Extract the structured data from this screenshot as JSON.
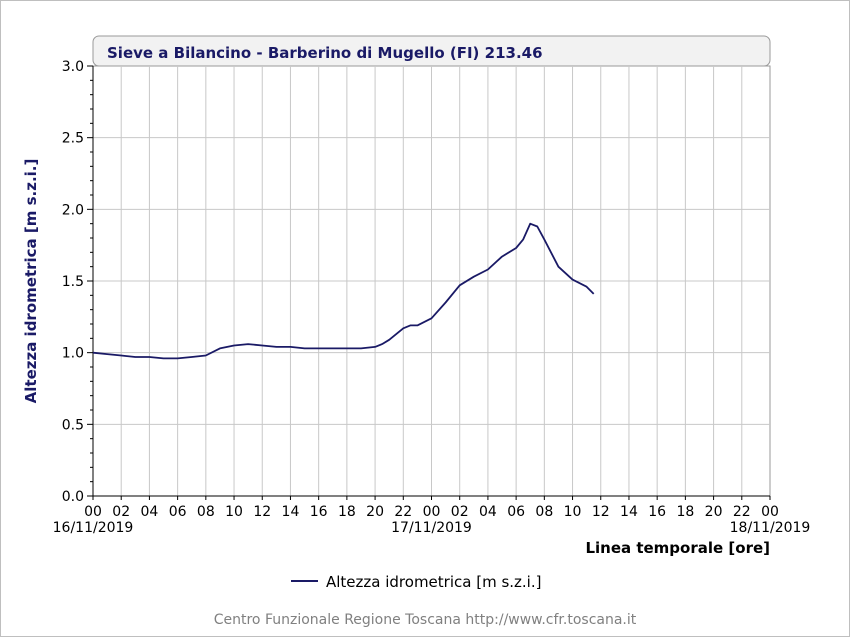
{
  "chart_data": {
    "type": "line",
    "title": "Sieve a Bilancino - Barberino di Mugello (FI) 213.46",
    "ylabel": "Altezza idrometrica [m s.z.i.]",
    "xlabel": "Linea temporale [ore]",
    "ylim": [
      0,
      3
    ],
    "yticks": [
      "0.0",
      "0.5",
      "1.0",
      "1.5",
      "2.0",
      "2.5",
      "3.0"
    ],
    "xtick_labels": [
      "00",
      "02",
      "04",
      "06",
      "08",
      "10",
      "12",
      "14",
      "16",
      "18",
      "20",
      "22",
      "00",
      "02",
      "04",
      "06",
      "08",
      "10",
      "12",
      "14",
      "16",
      "18",
      "20",
      "22",
      "00"
    ],
    "date_labels": [
      {
        "hour": 0,
        "text": "16/11/2019"
      },
      {
        "hour": 24,
        "text": "17/11/2019"
      },
      {
        "hour": 48,
        "text": "18/11/2019"
      }
    ],
    "xlim_hours": [
      0,
      48
    ],
    "grid": true,
    "legend": "bottom-center",
    "color": "#1a1a66",
    "series": [
      {
        "name": "Altezza idrometrica [m s.z.i.]",
        "x": [
          0,
          1,
          2,
          3,
          4,
          5,
          6,
          7,
          8,
          9,
          10,
          11,
          12,
          13,
          14,
          15,
          16,
          17,
          18,
          19,
          20,
          20.5,
          21,
          22,
          22.5,
          23,
          24,
          25,
          26,
          27,
          28,
          29,
          30,
          30.5,
          31,
          31.5,
          32,
          33,
          34,
          35,
          35.5
        ],
        "y": [
          1.0,
          0.99,
          0.98,
          0.97,
          0.97,
          0.96,
          0.96,
          0.97,
          0.98,
          1.03,
          1.05,
          1.06,
          1.05,
          1.04,
          1.04,
          1.03,
          1.03,
          1.03,
          1.03,
          1.03,
          1.04,
          1.06,
          1.09,
          1.17,
          1.19,
          1.19,
          1.24,
          1.35,
          1.47,
          1.53,
          1.58,
          1.67,
          1.73,
          1.79,
          1.9,
          1.88,
          1.79,
          1.6,
          1.51,
          1.46,
          1.41
        ]
      }
    ]
  },
  "legend_label": "Altezza idrometrica [m s.z.i.]",
  "footer": "Centro Funzionale Regione Toscana http://www.cfr.toscana.it"
}
